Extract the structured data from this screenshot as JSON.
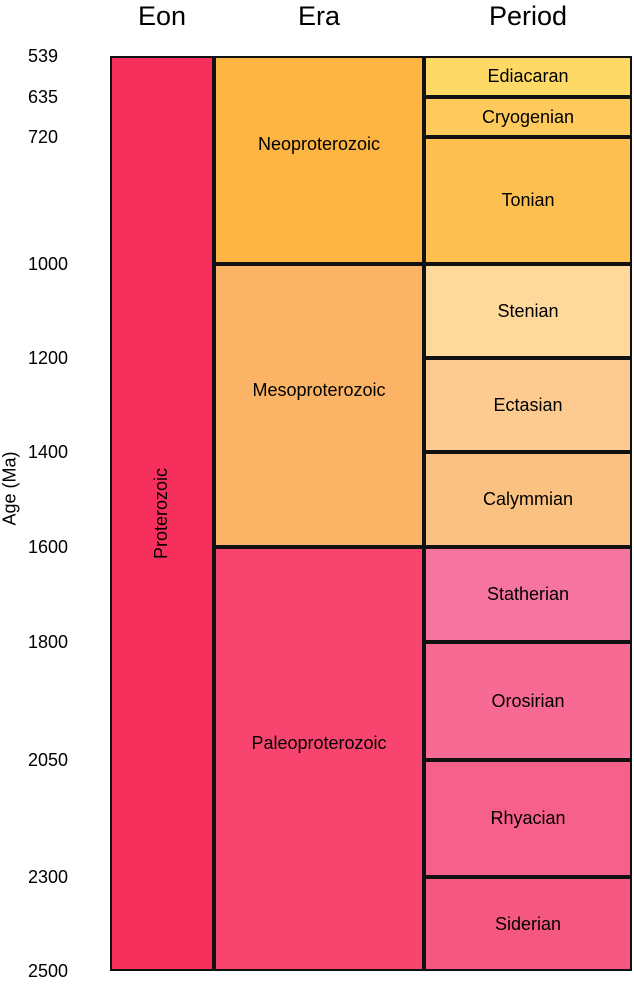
{
  "headers": {
    "eon": "Eon",
    "era": "Era",
    "period": "Period"
  },
  "y_axis_label": "Age (Ma)",
  "ticks": [
    "539",
    "635",
    "720",
    "1000",
    "1200",
    "1400",
    "1600",
    "1800",
    "2050",
    "2300",
    "2500"
  ],
  "eon": {
    "label": "Proterozoic",
    "start": 2500,
    "end": 539,
    "color": "#f72f5d"
  },
  "eras": [
    {
      "label": "Neoproterozoic",
      "start": 1000,
      "end": 539,
      "color": "#fcb443"
    },
    {
      "label": "Mesoproterozoic",
      "start": 1600,
      "end": 1000,
      "color": "#fbb466"
    },
    {
      "label": "Paleoproterozoic",
      "start": 2500,
      "end": 1600,
      "color": "#f84570"
    }
  ],
  "periods": [
    {
      "label": "Ediacaran",
      "start": 635,
      "end": 539,
      "color": "#fed966"
    },
    {
      "label": "Cryogenian",
      "start": 720,
      "end": 635,
      "color": "#fdca5b"
    },
    {
      "label": "Tonian",
      "start": 1000,
      "end": 720,
      "color": "#fdbf4f"
    },
    {
      "label": "Stenian",
      "start": 1200,
      "end": 1000,
      "color": "#fed99b"
    },
    {
      "label": "Ectasian",
      "start": 1400,
      "end": 1200,
      "color": "#fdcb8f"
    },
    {
      "label": "Calymmian",
      "start": 1600,
      "end": 1400,
      "color": "#fbc181"
    },
    {
      "label": "Statherian",
      "start": 1800,
      "end": 1600,
      "color": "#f674a0"
    },
    {
      "label": "Orosirian",
      "start": 2050,
      "end": 1800,
      "color": "#f66a94"
    },
    {
      "label": "Rhyacian",
      "start": 2300,
      "end": 2050,
      "color": "#f6608b"
    },
    {
      "label": "Siderian",
      "start": 2500,
      "end": 2300,
      "color": "#f65780"
    }
  ]
}
